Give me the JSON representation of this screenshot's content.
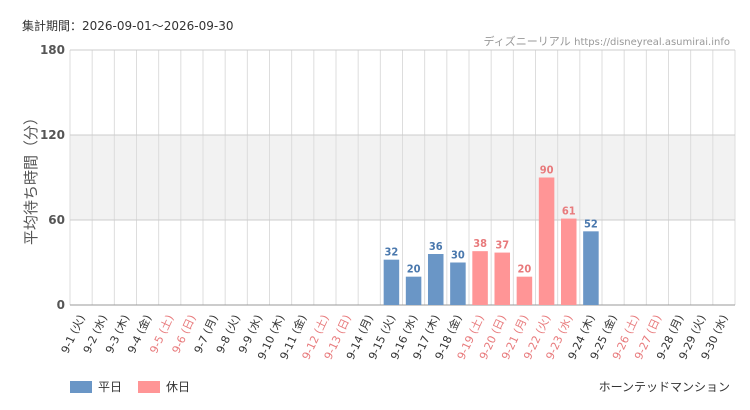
{
  "header": {
    "period_label": "集計期間：2026-09-01～2026-09-30",
    "source_name": "ディズニーリアル",
    "source_url": "https://disneyreal.asumirai.info"
  },
  "footer": {
    "attraction": "ホーンテッドマンション"
  },
  "colors": {
    "weekday": "#6a96c6",
    "holiday": "#ff9596",
    "weekday_label": "#4a78ad",
    "holiday_label": "#e87a7c",
    "band": "#f2f2f2",
    "grid": "#dddddd"
  },
  "chart_data": {
    "type": "bar",
    "title": "",
    "xlabel": "",
    "ylabel": "平均待ち時間（分）",
    "ylim": [
      0,
      180
    ],
    "yticks": [
      0,
      60,
      120,
      180
    ],
    "band": [
      60,
      120
    ],
    "grid": true,
    "legend_position": "bottom-left",
    "categories": [
      "9-1 (火)",
      "9-2 (水)",
      "9-3 (木)",
      "9-4 (金)",
      "9-5 (土)",
      "9-6 (日)",
      "9-7 (月)",
      "9-8 (火)",
      "9-9 (水)",
      "9-10 (木)",
      "9-11 (金)",
      "9-12 (土)",
      "9-13 (日)",
      "9-14 (月)",
      "9-15 (火)",
      "9-16 (水)",
      "9-17 (木)",
      "9-18 (金)",
      "9-19 (土)",
      "9-20 (日)",
      "9-21 (月)",
      "9-22 (火)",
      "9-23 (水)",
      "9-24 (木)",
      "9-25 (金)",
      "9-26 (土)",
      "9-27 (日)",
      "9-28 (月)",
      "9-29 (火)",
      "9-30 (水)"
    ],
    "day_type": [
      "weekday",
      "weekday",
      "weekday",
      "weekday",
      "holiday",
      "holiday",
      "weekday",
      "weekday",
      "weekday",
      "weekday",
      "weekday",
      "holiday",
      "holiday",
      "weekday",
      "weekday",
      "weekday",
      "weekday",
      "weekday",
      "holiday",
      "holiday",
      "holiday",
      "holiday",
      "holiday",
      "weekday",
      "weekday",
      "holiday",
      "holiday",
      "weekday",
      "weekday",
      "weekday"
    ],
    "series": [
      {
        "name": "平日",
        "key": "weekday"
      },
      {
        "name": "休日",
        "key": "holiday"
      }
    ],
    "values": [
      null,
      null,
      null,
      null,
      null,
      null,
      null,
      null,
      null,
      null,
      null,
      null,
      null,
      null,
      32,
      20,
      36,
      30,
      38,
      37,
      20,
      90,
      61,
      52,
      null,
      null,
      null,
      null,
      null,
      null
    ]
  }
}
